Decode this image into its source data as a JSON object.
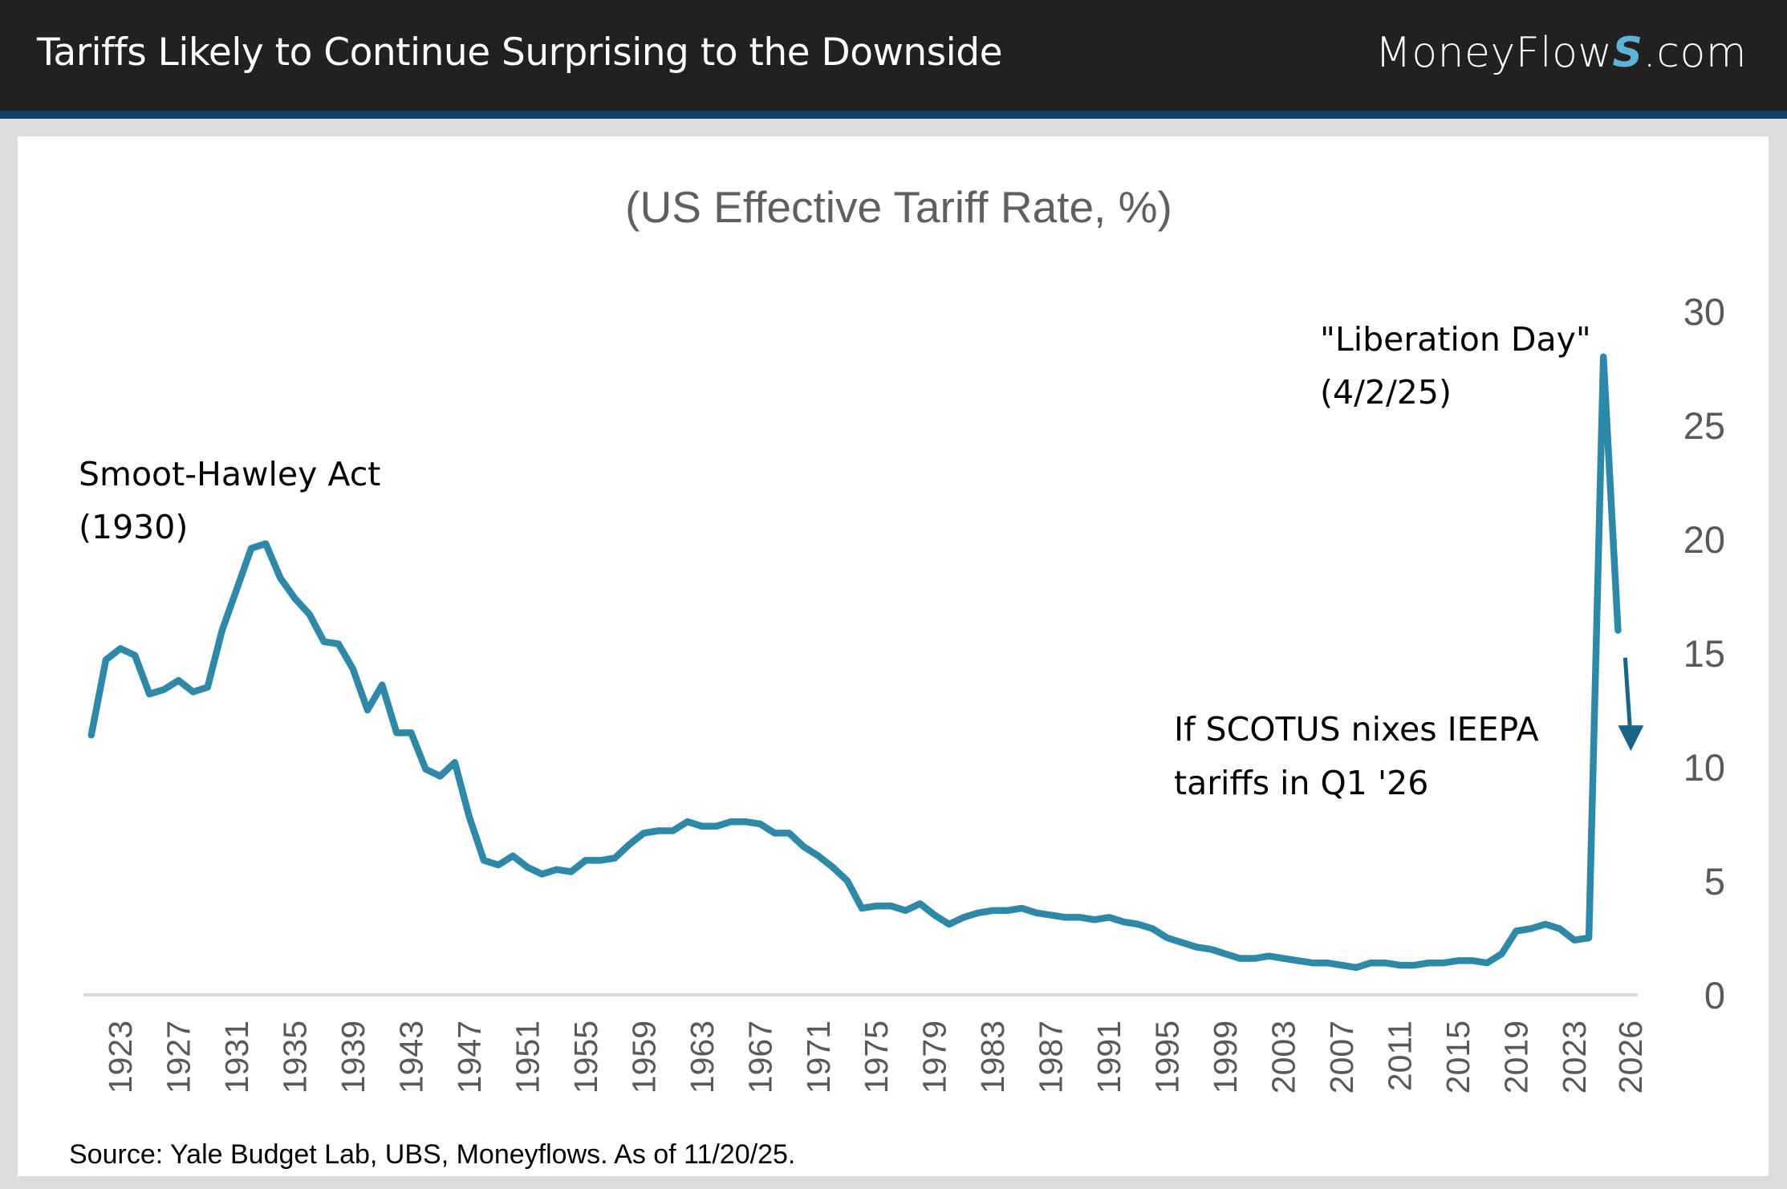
{
  "header": {
    "title": "Tariffs Likely to Continue Surprising to the Downside",
    "logo_text_before": "MoneyFlow",
    "logo_text_s": "S",
    "logo_text_after": ".com"
  },
  "colors": {
    "header_bg": "#212121",
    "header_strip": "#0f3f66",
    "line": "#2e89a8",
    "arrow": "#1a6688",
    "axis": "#d9d9d9",
    "frame_bg": "#dcdcdc"
  },
  "source": "Source: Yale Budget Lab, UBS, Moneyflows. As of 11/20/25.",
  "chart_data": {
    "type": "line",
    "title": "(US Effective Tariff Rate, %)",
    "xlabel": "",
    "ylabel": "",
    "y_axis_position": "right",
    "ylim": [
      0,
      30
    ],
    "yticks": [
      0,
      5,
      10,
      15,
      20,
      25,
      30
    ],
    "grid": false,
    "xtick_labels": [
      "1923",
      "1927",
      "1931",
      "1935",
      "1939",
      "1943",
      "1947",
      "1951",
      "1955",
      "1959",
      "1963",
      "1967",
      "1971",
      "1975",
      "1979",
      "1983",
      "1987",
      "1991",
      "1995",
      "1999",
      "2003",
      "2007",
      "2011",
      "2015",
      "2019",
      "2023",
      "2026"
    ],
    "series": [
      {
        "name": "US Effective Tariff Rate",
        "x": [
          1921,
          1922,
          1923,
          1924,
          1925,
          1926,
          1927,
          1928,
          1929,
          1930,
          1931,
          1932,
          1933,
          1934,
          1935,
          1936,
          1937,
          1938,
          1939,
          1940,
          1941,
          1942,
          1943,
          1944,
          1945,
          1946,
          1947,
          1948,
          1949,
          1950,
          1951,
          1952,
          1953,
          1954,
          1955,
          1956,
          1957,
          1958,
          1959,
          1960,
          1961,
          1962,
          1963,
          1964,
          1965,
          1966,
          1967,
          1968,
          1969,
          1970,
          1971,
          1972,
          1973,
          1974,
          1975,
          1976,
          1977,
          1978,
          1979,
          1980,
          1981,
          1982,
          1983,
          1984,
          1985,
          1986,
          1987,
          1988,
          1989,
          1990,
          1991,
          1992,
          1993,
          1994,
          1995,
          1996,
          1997,
          1998,
          1999,
          2000,
          2001,
          2002,
          2003,
          2004,
          2005,
          2006,
          2007,
          2008,
          2009,
          2010,
          2011,
          2012,
          2013,
          2014,
          2015,
          2016,
          2017,
          2018,
          2019,
          2020,
          2021,
          2022,
          2023,
          2024,
          2025,
          2026
        ],
        "values": [
          11.4,
          14.7,
          15.2,
          14.9,
          13.2,
          13.4,
          13.8,
          13.3,
          13.5,
          16.0,
          17.8,
          19.6,
          19.8,
          18.3,
          17.4,
          16.7,
          15.5,
          15.4,
          14.3,
          12.5,
          13.6,
          11.5,
          11.5,
          9.9,
          9.6,
          10.2,
          7.8,
          5.9,
          5.7,
          6.1,
          5.6,
          5.3,
          5.5,
          5.4,
          5.9,
          5.9,
          6.0,
          6.6,
          7.1,
          7.2,
          7.2,
          7.6,
          7.4,
          7.4,
          7.6,
          7.6,
          7.5,
          7.1,
          7.1,
          6.5,
          6.1,
          5.6,
          5.0,
          3.8,
          3.9,
          3.9,
          3.7,
          4.0,
          3.5,
          3.1,
          3.4,
          3.6,
          3.7,
          3.7,
          3.8,
          3.6,
          3.5,
          3.4,
          3.4,
          3.3,
          3.4,
          3.2,
          3.1,
          2.9,
          2.5,
          2.3,
          2.1,
          2.0,
          1.8,
          1.6,
          1.6,
          1.7,
          1.6,
          1.5,
          1.4,
          1.4,
          1.3,
          1.2,
          1.4,
          1.4,
          1.3,
          1.3,
          1.4,
          1.4,
          1.5,
          1.5,
          1.4,
          1.8,
          2.8,
          2.9,
          3.1,
          2.9,
          2.4,
          2.5,
          28.0,
          16.0
        ]
      }
    ],
    "projection_arrow": {
      "x": 2026,
      "from": 14.8,
      "to": 10.7
    },
    "annotations": [
      {
        "lines": [
          "Smoot-Hawley Act",
          "(1930)"
        ],
        "near_year": 1930
      },
      {
        "lines": [
          "\"Liberation Day\"",
          "(4/2/25)"
        ],
        "near_year": 2025
      },
      {
        "lines": [
          "If SCOTUS nixes IEEPA",
          "tariffs in Q1 '26"
        ],
        "near_year": 2026
      }
    ]
  }
}
